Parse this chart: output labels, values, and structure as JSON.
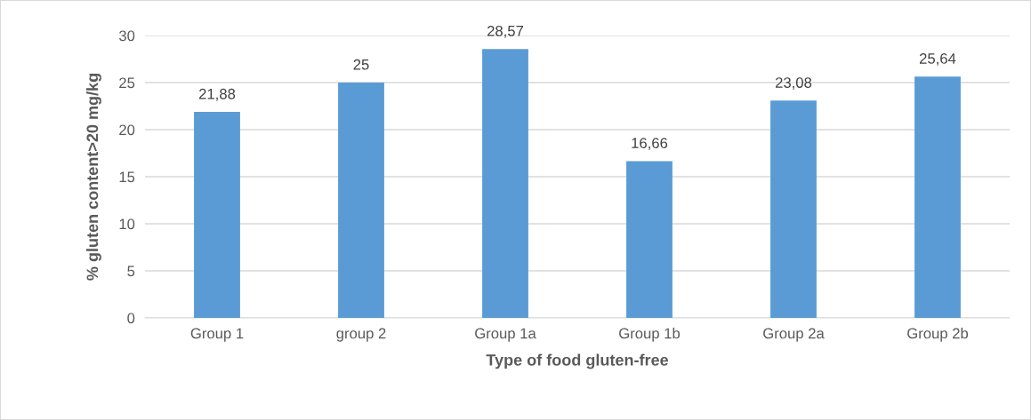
{
  "chart_data": {
    "type": "bar",
    "xlabel": "Type of food gluten-free",
    "ylabel": "% gluten content>20 mg/kg",
    "categories": [
      "Group 1",
      "group 2",
      "Group 1a",
      "Group 1b",
      "Group 2a",
      "Group 2b"
    ],
    "values": [
      21.88,
      25,
      28.57,
      16.66,
      23.08,
      25.64
    ],
    "value_labels": [
      "21,88",
      "25",
      "28,57",
      "16,66",
      "23,08",
      "25,64"
    ],
    "color": "#5b9bd5",
    "ylim": [
      0,
      30
    ],
    "yticks": [
      0,
      5,
      10,
      15,
      20,
      25,
      30
    ],
    "grid": "y",
    "legend": false
  }
}
